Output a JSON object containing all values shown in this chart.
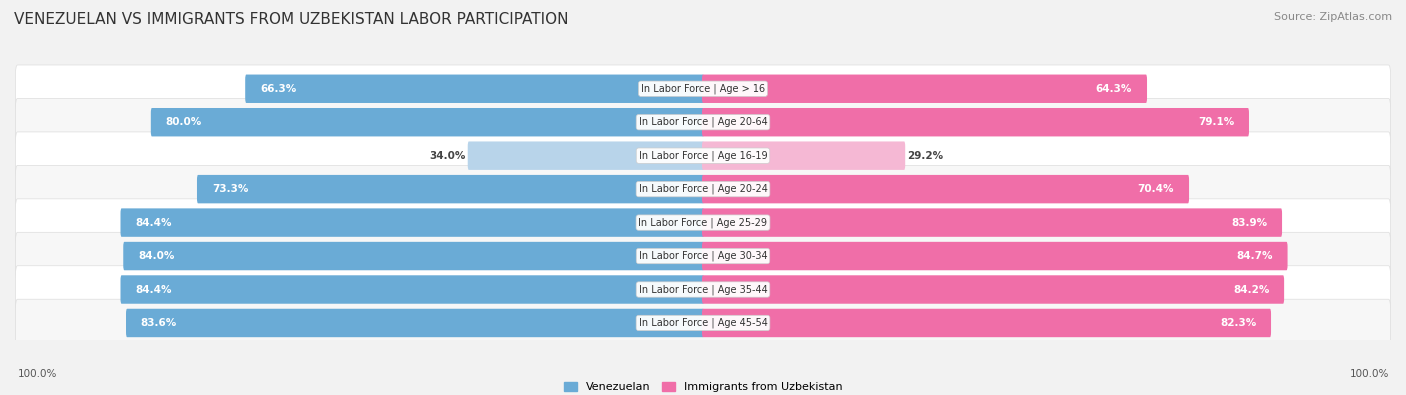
{
  "title": "VENEZUELAN VS IMMIGRANTS FROM UZBEKISTAN LABOR PARTICIPATION",
  "source": "Source: ZipAtlas.com",
  "categories": [
    "In Labor Force | Age > 16",
    "In Labor Force | Age 20-64",
    "In Labor Force | Age 16-19",
    "In Labor Force | Age 20-24",
    "In Labor Force | Age 25-29",
    "In Labor Force | Age 30-34",
    "In Labor Force | Age 35-44",
    "In Labor Force | Age 45-54"
  ],
  "venezuelan_values": [
    66.3,
    80.0,
    34.0,
    73.3,
    84.4,
    84.0,
    84.4,
    83.6
  ],
  "uzbekistan_values": [
    64.3,
    79.1,
    29.2,
    70.4,
    83.9,
    84.7,
    84.2,
    82.3
  ],
  "venezuelan_color": "#6aabd6",
  "venezuelan_light_color": "#b8d4ea",
  "uzbekistan_color": "#f06ea8",
  "uzbekistan_light_color": "#f5b8d4",
  "background_color": "#f2f2f2",
  "row_bg_color": "#ffffff",
  "row_alt_bg_color": "#f7f7f7",
  "max_value": 100.0,
  "legend_venezuelan": "Venezuelan",
  "legend_uzbekistan": "Immigrants from Uzbekistan",
  "title_fontsize": 11,
  "source_fontsize": 8,
  "label_fontsize": 7.5,
  "category_fontsize": 7,
  "footer_value": "100.0%"
}
